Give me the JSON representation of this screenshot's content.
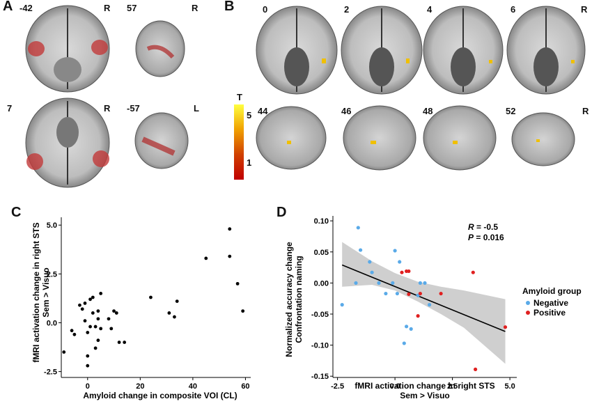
{
  "panelA": {
    "letter": "A",
    "slices": [
      {
        "label": "-42",
        "side": "R"
      },
      {
        "label": "57",
        "side": "R"
      },
      {
        "label": "7",
        "side": "R"
      },
      {
        "label": "-57",
        "side": "L"
      }
    ]
  },
  "panelB": {
    "letter": "B",
    "top_labels": [
      "0",
      "2",
      "4",
      "6"
    ],
    "top_side": "R",
    "bottom_labels": [
      "44",
      "46",
      "48",
      "52"
    ],
    "bottom_side": "R"
  },
  "colorbar": {
    "title": "T",
    "max": "5",
    "min": "1"
  },
  "chart_data": [
    {
      "panel": "C",
      "type": "scatter",
      "xlabel": "Amyloid change in composite VOI (CL)",
      "ylabel_line1": "fMRI activation change in right STS",
      "ylabel_line2": "Sem > Visuo",
      "xticks": [
        "0",
        "20",
        "40",
        "60"
      ],
      "yticks": [
        "5.0",
        "2.5",
        "0.0",
        "-2.5"
      ],
      "xlim": [
        -10,
        62
      ],
      "ylim": [
        -2.8,
        5.4
      ],
      "points": [
        {
          "x": -9,
          "y": -1.5
        },
        {
          "x": -6,
          "y": -0.4
        },
        {
          "x": -5,
          "y": -0.6
        },
        {
          "x": -3,
          "y": 0.9
        },
        {
          "x": -2,
          "y": 0.7
        },
        {
          "x": -1,
          "y": 1.0
        },
        {
          "x": -1,
          "y": 0.1
        },
        {
          "x": 0,
          "y": -0.5
        },
        {
          "x": 0,
          "y": -2.2
        },
        {
          "x": 0,
          "y": -1.7
        },
        {
          "x": 1,
          "y": 1.2
        },
        {
          "x": 1,
          "y": -0.2
        },
        {
          "x": 2,
          "y": 1.3
        },
        {
          "x": 2,
          "y": 0.5
        },
        {
          "x": 3,
          "y": -0.2
        },
        {
          "x": 3,
          "y": -1.3
        },
        {
          "x": 4,
          "y": 0.6
        },
        {
          "x": 4,
          "y": 0.2
        },
        {
          "x": 4,
          "y": -0.9
        },
        {
          "x": 5,
          "y": 1.5
        },
        {
          "x": 5,
          "y": -0.3
        },
        {
          "x": 8,
          "y": 0.2
        },
        {
          "x": 9,
          "y": -0.3
        },
        {
          "x": 10,
          "y": 0.6
        },
        {
          "x": 11,
          "y": 0.5
        },
        {
          "x": 12,
          "y": -1.0
        },
        {
          "x": 14,
          "y": -1.0
        },
        {
          "x": 24,
          "y": 1.3
        },
        {
          "x": 31,
          "y": 0.5
        },
        {
          "x": 33,
          "y": 0.3
        },
        {
          "x": 34,
          "y": 1.1
        },
        {
          "x": 45,
          "y": 3.3
        },
        {
          "x": 54,
          "y": 4.8
        },
        {
          "x": 54,
          "y": 3.4
        },
        {
          "x": 57,
          "y": 2.0
        },
        {
          "x": 59,
          "y": 0.6
        }
      ]
    },
    {
      "panel": "D",
      "type": "scatter",
      "xlabel_line1": "fMRI activation change in right STS",
      "xlabel_line2": "Sem > Visuo",
      "ylabel_line1": "Normalized accuracy change",
      "ylabel_line2": "Confrontation naming",
      "xticks": [
        "-2.5",
        "0.0",
        "2.5",
        "5.0"
      ],
      "yticks": [
        "0.10",
        "0.05",
        "0.00",
        "-0.05",
        "-0.10",
        "-0.15"
      ],
      "xlim": [
        -2.7,
        5.3
      ],
      "ylim": [
        -0.152,
        0.108
      ],
      "annotation": {
        "r_label": "R",
        "r_value": " = -0.5",
        "p_label": "P",
        "p_value": " = 0.016"
      },
      "fit": {
        "x": [
          -2.3,
          4.8
        ],
        "y": [
          0.029,
          -0.078
        ]
      },
      "band": {
        "x": [
          -2.3,
          -1.0,
          0.0,
          1.0,
          2.0,
          3.0,
          4.8
        ],
        "upper": [
          0.066,
          0.035,
          0.016,
          0.002,
          -0.006,
          -0.012,
          -0.026
        ],
        "lower": [
          -0.006,
          -0.003,
          -0.012,
          -0.03,
          -0.05,
          -0.072,
          -0.13
        ]
      },
      "legend": {
        "title": "Amyloid group",
        "items": [
          {
            "name": "Negative",
            "color": "#5aaae8"
          },
          {
            "name": "Positive",
            "color": "#e02020"
          }
        ]
      },
      "series": [
        {
          "name": "Negative",
          "color": "#5aaae8",
          "points": [
            {
              "x": -2.3,
              "y": -0.035
            },
            {
              "x": -1.6,
              "y": 0.089
            },
            {
              "x": -1.5,
              "y": 0.053
            },
            {
              "x": -1.7,
              "y": 0.0
            },
            {
              "x": -1.1,
              "y": 0.034
            },
            {
              "x": -1.0,
              "y": 0.017
            },
            {
              "x": -0.7,
              "y": 0.0
            },
            {
              "x": -0.4,
              "y": -0.017
            },
            {
              "x": -0.1,
              "y": 0.0
            },
            {
              "x": 0.0,
              "y": 0.052
            },
            {
              "x": 0.1,
              "y": -0.017
            },
            {
              "x": 0.2,
              "y": 0.034
            },
            {
              "x": 0.5,
              "y": -0.07
            },
            {
              "x": 0.4,
              "y": -0.097
            },
            {
              "x": 0.7,
              "y": -0.074
            },
            {
              "x": 1.1,
              "y": 0.0
            },
            {
              "x": 1.3,
              "y": 0.0
            },
            {
              "x": 1.5,
              "y": -0.035
            },
            {
              "x": 1.0,
              "y": -0.02
            }
          ]
        },
        {
          "name": "Positive",
          "color": "#e02020",
          "points": [
            {
              "x": 0.3,
              "y": 0.017
            },
            {
              "x": 0.5,
              "y": 0.019
            },
            {
              "x": 0.6,
              "y": 0.019
            },
            {
              "x": 0.6,
              "y": -0.018
            },
            {
              "x": 1.1,
              "y": -0.017
            },
            {
              "x": 1.0,
              "y": -0.053
            },
            {
              "x": 2.0,
              "y": -0.017
            },
            {
              "x": 3.4,
              "y": 0.017
            },
            {
              "x": 3.5,
              "y": -0.139
            },
            {
              "x": 4.8,
              "y": -0.071
            }
          ]
        }
      ]
    }
  ]
}
